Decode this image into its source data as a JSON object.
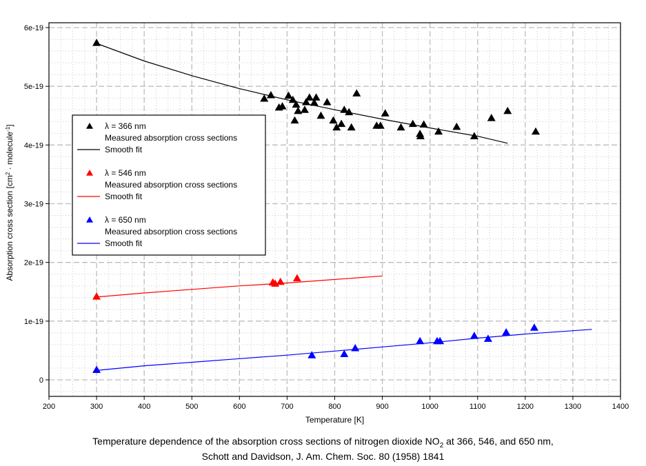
{
  "chart_data": {
    "type": "scatter",
    "title": "",
    "xlabel": "Temperature [K]",
    "ylabel_parts": {
      "main": "Absorption cross section [cm",
      "sup1": "2",
      "mid": " · molecule",
      "sup2": "-1",
      "end": "]"
    },
    "xlim": [
      200,
      1400
    ],
    "ylim": [
      0,
      6e-19
    ],
    "x_ticks": [
      200,
      300,
      400,
      500,
      600,
      700,
      800,
      900,
      1000,
      1100,
      1200,
      1300,
      1400
    ],
    "y_ticks": [
      {
        "value": 0,
        "label": "0"
      },
      {
        "value": 1e-19,
        "label": "1e-19"
      },
      {
        "value": 2e-19,
        "label": "2e-19"
      },
      {
        "value": 3e-19,
        "label": "3e-19"
      },
      {
        "value": 4e-19,
        "label": "4e-19"
      },
      {
        "value": 5e-19,
        "label": "5e-19"
      },
      {
        "value": 6e-19,
        "label": "6e-19"
      }
    ],
    "grid": true,
    "legend_position": "left-middle",
    "series": [
      {
        "name": "λ = 366 nm",
        "color": "#000000",
        "marker_label": "Measured absorption cross sections",
        "fit_label": "Smooth fit",
        "points": [
          [
            300,
            5.74e-19
          ],
          [
            652,
            4.79e-19
          ],
          [
            666,
            4.85e-19
          ],
          [
            683,
            4.64e-19
          ],
          [
            690,
            4.66e-19
          ],
          [
            703,
            4.84e-19
          ],
          [
            712,
            4.77e-19
          ],
          [
            716,
            4.42e-19
          ],
          [
            719,
            4.69e-19
          ],
          [
            723,
            4.58e-19
          ],
          [
            737,
            4.6e-19
          ],
          [
            740,
            4.73e-19
          ],
          [
            747,
            4.81e-19
          ],
          [
            757,
            4.72e-19
          ],
          [
            761,
            4.81e-19
          ],
          [
            771,
            4.5e-19
          ],
          [
            784,
            4.73e-19
          ],
          [
            797,
            4.42e-19
          ],
          [
            804,
            4.3e-19
          ],
          [
            814,
            4.36e-19
          ],
          [
            820,
            4.6e-19
          ],
          [
            830,
            4.56e-19
          ],
          [
            835,
            4.3e-19
          ],
          [
            846,
            4.88e-19
          ],
          [
            888,
            4.33e-19
          ],
          [
            896,
            4.33e-19
          ],
          [
            906,
            4.54e-19
          ],
          [
            939,
            4.3e-19
          ],
          [
            964,
            4.36e-19
          ],
          [
            979,
            4.19e-19
          ],
          [
            980,
            4.15e-19
          ],
          [
            987,
            4.35e-19
          ],
          [
            1018,
            4.23e-19
          ],
          [
            1056,
            4.31e-19
          ],
          [
            1093,
            4.15e-19
          ],
          [
            1129,
            4.46e-19
          ],
          [
            1163,
            4.58e-19
          ],
          [
            1222,
            4.23e-19
          ]
        ],
        "fit": [
          [
            300,
            5.73e-19
          ],
          [
            400,
            5.43e-19
          ],
          [
            500,
            5.18e-19
          ],
          [
            600,
            4.96e-19
          ],
          [
            700,
            4.77e-19
          ],
          [
            800,
            4.6e-19
          ],
          [
            900,
            4.44e-19
          ],
          [
            1000,
            4.29e-19
          ],
          [
            1100,
            4.15e-19
          ],
          [
            1163,
            4.03e-19
          ]
        ]
      },
      {
        "name": "λ = 546 nm",
        "color": "#ff0000",
        "marker_label": "Measured absorption cross sections",
        "fit_label": "Smooth fit",
        "points": [
          [
            300,
            1.42e-19
          ],
          [
            670,
            1.66e-19
          ],
          [
            675,
            1.64e-19
          ],
          [
            686,
            1.67e-19
          ],
          [
            721,
            1.73e-19
          ]
        ],
        "fit": [
          [
            300,
            1.41e-19
          ],
          [
            400,
            1.48e-19
          ],
          [
            500,
            1.54e-19
          ],
          [
            600,
            1.6e-19
          ],
          [
            700,
            1.65e-19
          ],
          [
            800,
            1.71e-19
          ],
          [
            900,
            1.77e-19
          ]
        ]
      },
      {
        "name": "λ = 650 nm",
        "color": "#0000ff",
        "marker_label": "Measured absorption cross sections",
        "fit_label": "Smooth fit",
        "points": [
          [
            300,
            1.7e-20
          ],
          [
            752,
            4.2e-20
          ],
          [
            820,
            4.4e-20
          ],
          [
            843,
            5.4e-20
          ],
          [
            979,
            6.6e-20
          ],
          [
            1015,
            6.6e-20
          ],
          [
            1021,
            6.6e-20
          ],
          [
            1093,
            7.5e-20
          ],
          [
            1122,
            7e-20
          ],
          [
            1160,
            8.1e-20
          ],
          [
            1219,
            8.9e-20
          ]
        ],
        "fit": [
          [
            300,
            1.6e-20
          ],
          [
            400,
            2.4e-20
          ],
          [
            500,
            3e-20
          ],
          [
            600,
            3.6e-20
          ],
          [
            700,
            4.2e-20
          ],
          [
            800,
            4.9e-20
          ],
          [
            900,
            5.6e-20
          ],
          [
            1000,
            6.3e-20
          ],
          [
            1100,
            7.1e-20
          ],
          [
            1200,
            7.8e-20
          ],
          [
            1340,
            8.6e-20
          ]
        ]
      }
    ]
  },
  "caption": {
    "line1_before": "Temperature dependence of the absorption cross sections of nitrogen dioxide NO",
    "line1_sub": "2",
    "line1_after": " at 366, 546, and 650 nm,",
    "line2": "Schott and Davidson, J. Am. Chem. Soc. 80 (1958) 1841"
  }
}
